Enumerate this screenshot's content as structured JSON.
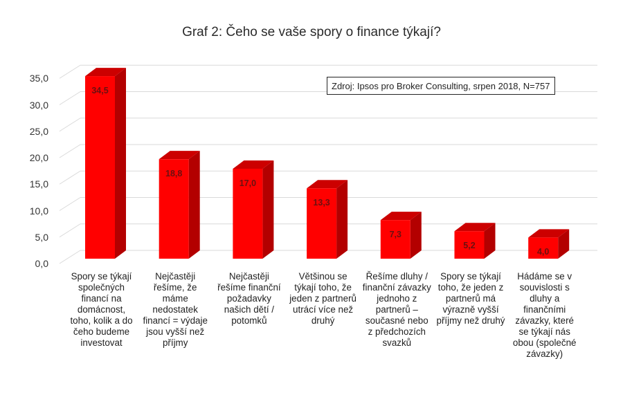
{
  "chart_data": {
    "type": "bar",
    "title": "Graf 2: Čeho se vaše spory o finance týkají?",
    "annotation": "Zdroj: Ipsos pro Broker Consulting, srpen 2018, N=757",
    "xlabel": "",
    "ylabel": "",
    "ylim": [
      0,
      35
    ],
    "yticks": [
      "0,0",
      "5,0",
      "10,0",
      "15,0",
      "20,0",
      "25,0",
      "30,0",
      "35,0"
    ],
    "grid": true,
    "legend": "none",
    "style": "3d-column",
    "bar_color": "#ff0000",
    "bar_side_color": "#b30000",
    "bar_top_color": "#cc0000",
    "categories": [
      "Spory se týkají společných financí na domácnost, toho, kolik a do čeho budeme investovat",
      "Nejčastěji řešíme, že máme nedostatek financí = výdaje jsou vyšší než příjmy",
      "Nejčastěji řešíme finanční požadavky našich dětí / potomků",
      "Většinou se týkají toho, že jeden z partnerů utrácí více než druhý",
      "Řešíme dluhy / finanční závazky jednoho z partnerů – současné nebo z předchozích svazků",
      "Spory se týkají toho, že jeden z partnerů má výrazně vyšší příjmy než druhý",
      "Hádáme se v souvislosti s dluhy a finančními závazky, které se týkají nás obou (společné závazky)"
    ],
    "values": [
      34.5,
      18.8,
      17.0,
      13.3,
      7.3,
      5.2,
      4.0
    ],
    "value_labels": [
      "34,5",
      "18,8",
      "17,0",
      "13,3",
      "7,3",
      "5,2",
      "4,0"
    ]
  }
}
